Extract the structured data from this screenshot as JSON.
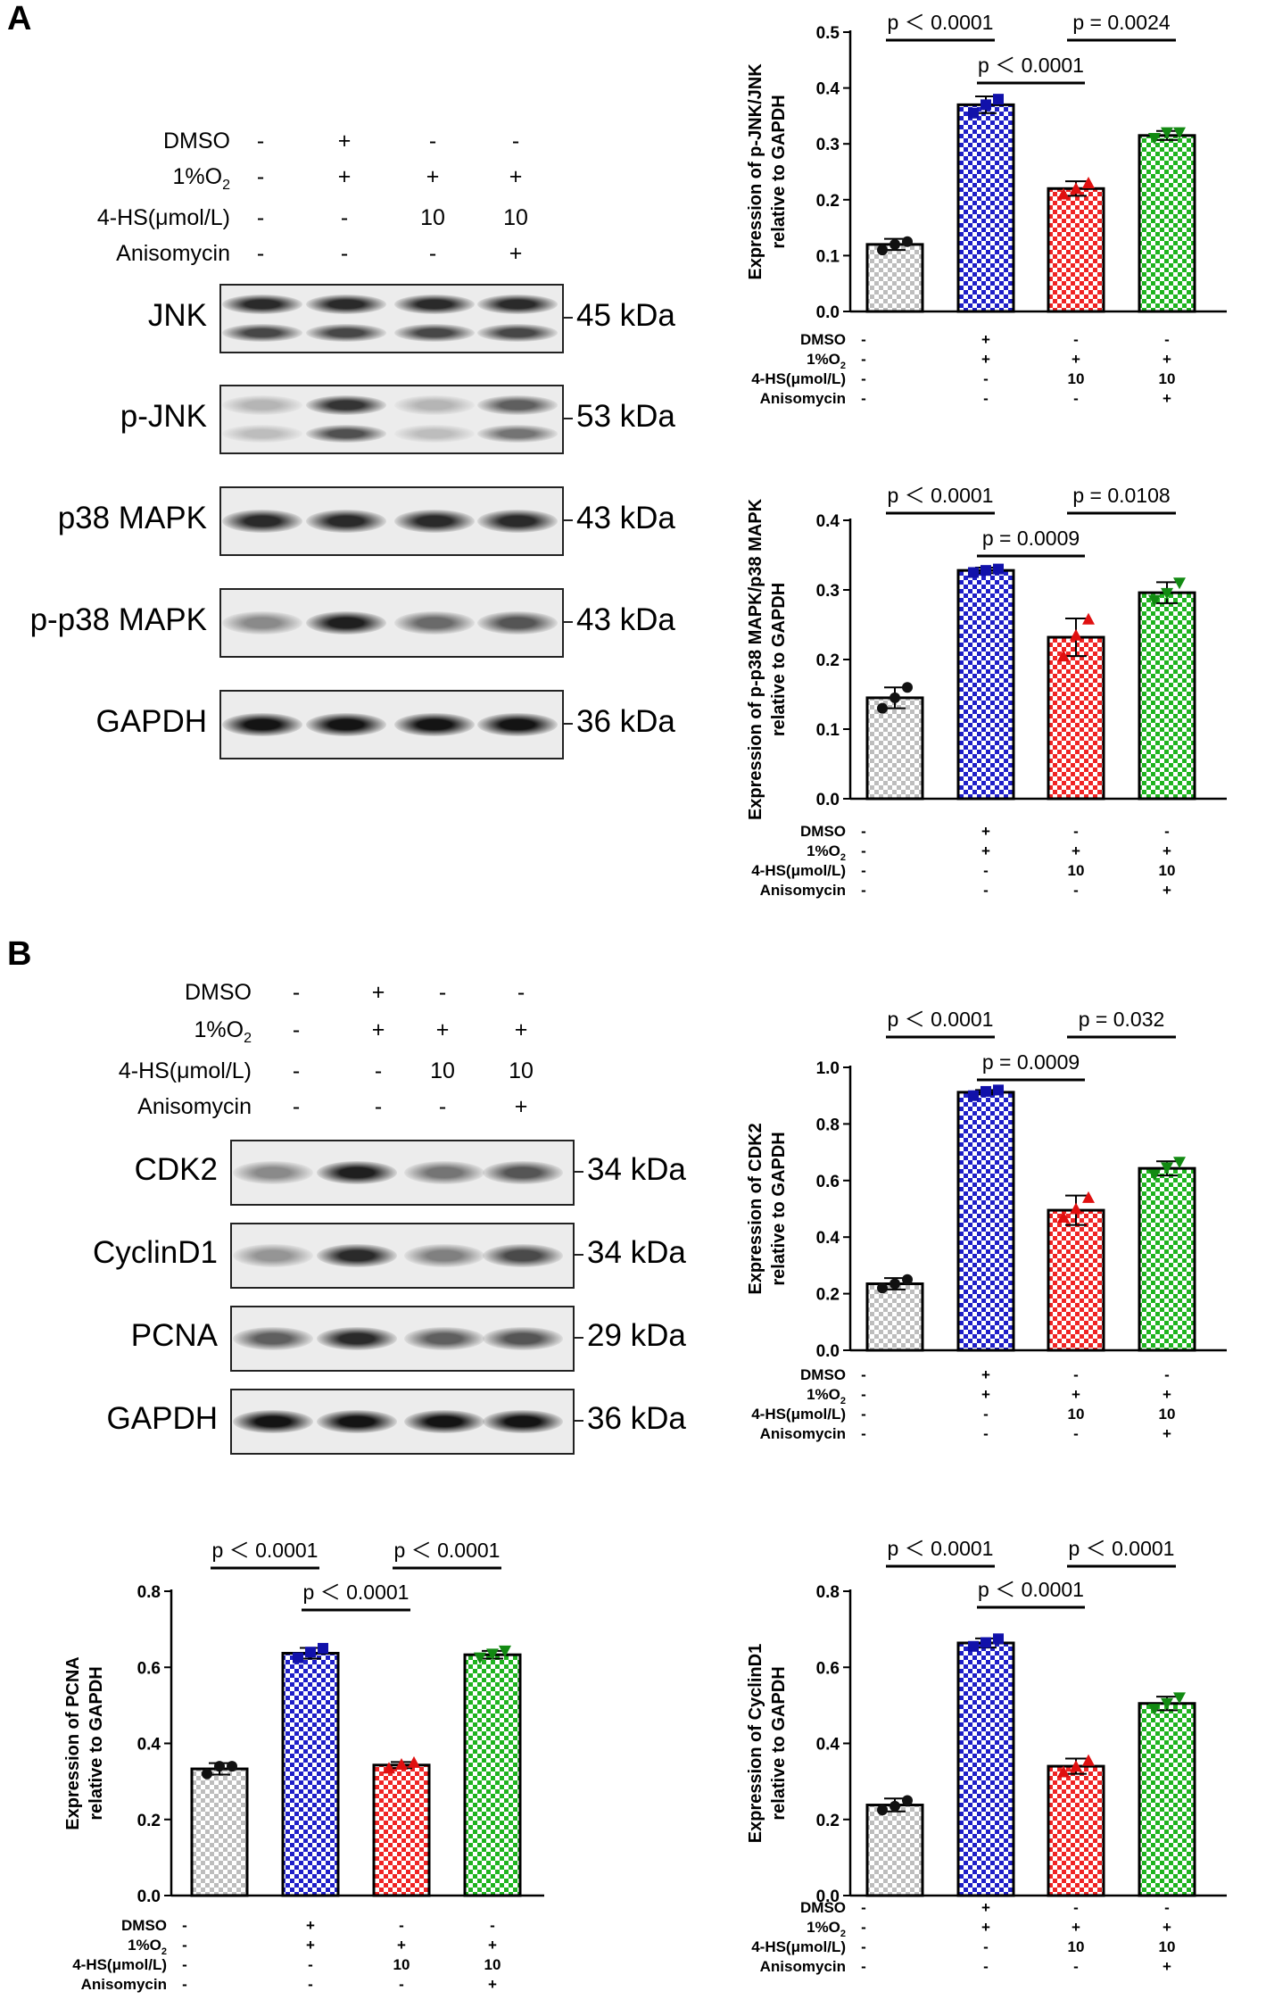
{
  "panels": {
    "A": {
      "label": "A"
    },
    "B": {
      "label": "B"
    }
  },
  "conditions": {
    "rows": [
      {
        "label": "DMSO",
        "values": [
          "-",
          "+",
          "-",
          "-"
        ]
      },
      {
        "label_main": "1%O",
        "label_sub": "2",
        "values": [
          "-",
          "+",
          "+",
          "+"
        ]
      },
      {
        "label": "4-HS(μmol/L)",
        "values": [
          "-",
          "-",
          "10",
          "10"
        ]
      },
      {
        "label": "Anisomycin",
        "values": [
          "-",
          "-",
          "-",
          "+"
        ]
      }
    ]
  },
  "blots_A": [
    {
      "name": "JNK",
      "kda": "45 kDa",
      "intensity": [
        0.9,
        0.9,
        0.9,
        0.9
      ],
      "double": true
    },
    {
      "name": "p-JNK",
      "kda": "53 kDa",
      "intensity": [
        0.25,
        0.85,
        0.25,
        0.65
      ],
      "double": true
    },
    {
      "name": "p38 MAPK",
      "kda": "43 kDa",
      "intensity": [
        0.9,
        0.9,
        0.9,
        0.9
      ],
      "double": false
    },
    {
      "name": "p-p38 MAPK",
      "kda": "43 kDa",
      "intensity": [
        0.45,
        0.95,
        0.6,
        0.7
      ],
      "double": false
    },
    {
      "name": "GAPDH",
      "kda": "36 kDa",
      "intensity": [
        1.0,
        1.0,
        1.0,
        1.0
      ],
      "double": false
    }
  ],
  "blots_B": [
    {
      "name": "CDK2",
      "kda": "34 kDa",
      "intensity": [
        0.45,
        0.95,
        0.55,
        0.7
      ],
      "double": false
    },
    {
      "name": "CyclinD1",
      "kda": "34 kDa",
      "intensity": [
        0.4,
        0.9,
        0.5,
        0.75
      ],
      "double": false
    },
    {
      "name": "PCNA",
      "kda": "29 kDa",
      "intensity": [
        0.65,
        0.9,
        0.65,
        0.7
      ],
      "double": false
    },
    {
      "name": "GAPDH",
      "kda": "36 kDa",
      "intensity": [
        1.0,
        1.0,
        1.0,
        1.0
      ],
      "double": false
    }
  ],
  "chart_data": [
    {
      "type": "bar",
      "ylabel": [
        "Expression of p-JNK/JNK",
        "relative to GAPDH"
      ],
      "ylim": [
        0,
        0.5
      ],
      "yticks": [
        "0.0",
        "0.1",
        "0.2",
        "0.3",
        "0.4",
        "0.5"
      ],
      "values": [
        0.12,
        0.37,
        0.22,
        0.315
      ],
      "errors": [
        0.01,
        0.015,
        0.013,
        0.008
      ],
      "points": [
        [
          0.11,
          0.12,
          0.125
        ],
        [
          0.355,
          0.37,
          0.38
        ],
        [
          0.21,
          0.22,
          0.23
        ],
        [
          0.31,
          0.32,
          0.32
        ]
      ],
      "sig": [
        {
          "a": 0,
          "b": 1,
          "label": "p ＜ 0.0001",
          "level": 0
        },
        {
          "a": 2,
          "b": 3,
          "label": "p = 0.0024",
          "level": 0
        },
        {
          "a": 1,
          "b": 2,
          "label": "p ＜ 0.0001",
          "level": 1
        }
      ]
    },
    {
      "type": "bar",
      "ylabel": [
        "Expression of p-p38 MAPK/p38 MAPK",
        "relative to GAPDH"
      ],
      "ylim": [
        0,
        0.4
      ],
      "yticks": [
        "0.0",
        "0.1",
        "0.2",
        "0.3",
        "0.4"
      ],
      "values": [
        0.145,
        0.328,
        0.232,
        0.296
      ],
      "errors": [
        0.015,
        0.004,
        0.027,
        0.015
      ],
      "points": [
        [
          0.13,
          0.145,
          0.16
        ],
        [
          0.325,
          0.328,
          0.33
        ],
        [
          0.205,
          0.235,
          0.258
        ],
        [
          0.285,
          0.295,
          0.31
        ]
      ],
      "sig": [
        {
          "a": 0,
          "b": 1,
          "label": "p ＜ 0.0001",
          "level": 0
        },
        {
          "a": 2,
          "b": 3,
          "label": "p = 0.0108",
          "level": 0
        },
        {
          "a": 1,
          "b": 2,
          "label": "p = 0.0009",
          "level": 1
        }
      ]
    },
    {
      "type": "bar",
      "ylabel": [
        "Expression of CDK2",
        "relative to GAPDH"
      ],
      "ylim": [
        0,
        1.0
      ],
      "yticks": [
        "0.0",
        "0.2",
        "0.4",
        "0.6",
        "0.8",
        "1.0"
      ],
      "values": [
        0.235,
        0.912,
        0.495,
        0.643
      ],
      "errors": [
        0.02,
        0.008,
        0.052,
        0.025
      ],
      "points": [
        [
          0.22,
          0.235,
          0.25
        ],
        [
          0.9,
          0.915,
          0.92
        ],
        [
          0.47,
          0.5,
          0.54
        ],
        [
          0.62,
          0.645,
          0.665
        ]
      ],
      "sig": [
        {
          "a": 0,
          "b": 1,
          "label": "p ＜ 0.0001",
          "level": 0
        },
        {
          "a": 2,
          "b": 3,
          "label": "p = 0.032",
          "level": 0
        },
        {
          "a": 1,
          "b": 2,
          "label": "p = 0.0009",
          "level": 1
        }
      ]
    },
    {
      "type": "bar",
      "ylabel": [
        "Expression of PCNA",
        "relative to GAPDH"
      ],
      "ylim": [
        0,
        0.8
      ],
      "yticks": [
        "0.0",
        "0.2",
        "0.4",
        "0.6",
        "0.8"
      ],
      "values": [
        0.333,
        0.637,
        0.343,
        0.633
      ],
      "errors": [
        0.015,
        0.014,
        0.008,
        0.01
      ],
      "points": [
        [
          0.32,
          0.34,
          0.34
        ],
        [
          0.625,
          0.64,
          0.65
        ],
        [
          0.335,
          0.345,
          0.35
        ],
        [
          0.625,
          0.635,
          0.643
        ]
      ],
      "sig": [
        {
          "a": 0,
          "b": 1,
          "label": "p ＜ 0.0001",
          "level": 0
        },
        {
          "a": 2,
          "b": 3,
          "label": "p ＜ 0.0001",
          "level": 0
        },
        {
          "a": 1,
          "b": 2,
          "label": "p ＜ 0.0001",
          "level": 1
        }
      ]
    },
    {
      "type": "bar",
      "ylabel": [
        "Expression of CyclinD1",
        "relative to GAPDH"
      ],
      "ylim": [
        0,
        0.8
      ],
      "yticks": [
        "0.0",
        "0.2",
        "0.4",
        "0.6",
        "0.8"
      ],
      "values": [
        0.238,
        0.664,
        0.34,
        0.505
      ],
      "errors": [
        0.017,
        0.012,
        0.02,
        0.018
      ],
      "points": [
        [
          0.225,
          0.235,
          0.25
        ],
        [
          0.655,
          0.665,
          0.675
        ],
        [
          0.325,
          0.34,
          0.355
        ],
        [
          0.49,
          0.505,
          0.52
        ]
      ],
      "sig": [
        {
          "a": 0,
          "b": 1,
          "label": "p ＜ 0.0001",
          "level": 0
        },
        {
          "a": 2,
          "b": 3,
          "label": "p ＜ 0.0001",
          "level": 0
        },
        {
          "a": 1,
          "b": 2,
          "label": "p ＜ 0.0001",
          "level": 1
        }
      ]
    }
  ],
  "colors": {
    "group_fill": [
      "#bdbdbd",
      "#1f1fc8",
      "#f02424",
      "#1fb41f"
    ],
    "group_mark": [
      "#111111",
      "#1111aa",
      "#e01010",
      "#128a12"
    ],
    "axis": "#000000"
  }
}
